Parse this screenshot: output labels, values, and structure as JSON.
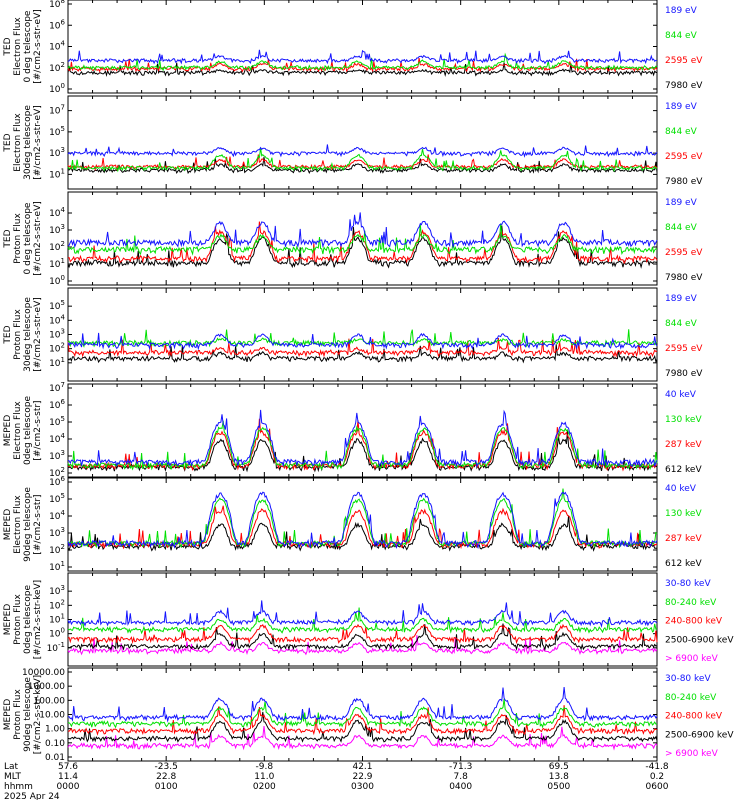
{
  "colors": {
    "blue": "#1414ff",
    "red": "#ff0000",
    "green": "#00e000",
    "black": "#000000",
    "magenta": "#ff00ff"
  },
  "chart_data": [
    {
      "type": "line",
      "ylabel": [
        "TED",
        "Electron Flux",
        "0 deg telescope",
        "[#/cm2-s-str-eV]"
      ],
      "ylog": true,
      "ylim": [
        1,
        100000000
      ],
      "yticks": [
        {
          "v": 1,
          "t": "10^0"
        },
        {
          "v": 100,
          "t": "10^2"
        },
        {
          "v": 10000,
          "t": "10^4"
        },
        {
          "v": 1000000,
          "t": "10^6"
        },
        {
          "v": 100000000,
          "t": "10^8"
        }
      ],
      "series": [
        {
          "name": "7980 eV",
          "color": "black",
          "floor": 10,
          "amp": 25,
          "base": 30
        },
        {
          "name": "2595 eV",
          "color": "red",
          "floor": 30,
          "amp": 150,
          "base": 60
        },
        {
          "name": "844 eV",
          "color": "green",
          "floor": 40,
          "amp": 300,
          "base": 80
        },
        {
          "name": "189 eV",
          "color": "blue",
          "floor": 200,
          "amp": 700,
          "base": 350
        }
      ]
    },
    {
      "type": "line",
      "ylabel": [
        "TED",
        "Electron Flux",
        "30deg telescope",
        "[#/cm2-s-str-eV]"
      ],
      "ylog": true,
      "ylim": [
        1,
        100000000
      ],
      "yticks": [
        {
          "v": 10,
          "t": "10^1"
        },
        {
          "v": 1000,
          "t": "10^3"
        },
        {
          "v": 100000,
          "t": "10^5"
        },
        {
          "v": 10000000,
          "t": "10^7"
        }
      ],
      "series": [
        {
          "name": "7980 eV",
          "color": "black",
          "floor": 8,
          "amp": 60,
          "base": 20
        },
        {
          "name": "2595 eV",
          "color": "red",
          "floor": 20,
          "amp": 180,
          "base": 40
        },
        {
          "name": "844 eV",
          "color": "green",
          "floor": 15,
          "amp": 600,
          "base": 30
        },
        {
          "name": "189 eV",
          "color": "blue",
          "floor": 300,
          "amp": 2000,
          "base": 800
        }
      ]
    },
    {
      "type": "line",
      "ylabel": [
        "TED",
        "Proton Flux",
        "0 deg telescope",
        "[#/cm2-s-str-eV]"
      ],
      "ylog": true,
      "ylim": [
        1,
        100000
      ],
      "yticks": [
        {
          "v": 1,
          "t": "10^0"
        },
        {
          "v": 10,
          "t": "10^1"
        },
        {
          "v": 100,
          "t": "10^2"
        },
        {
          "v": 1000,
          "t": "10^3"
        },
        {
          "v": 10000,
          "t": "10^4"
        }
      ],
      "series": [
        {
          "name": "7980 eV",
          "color": "black",
          "floor": 5,
          "amp": 300,
          "base": 8
        },
        {
          "name": "2595 eV",
          "color": "red",
          "floor": 8,
          "amp": 700,
          "base": 15
        },
        {
          "name": "844 eV",
          "color": "green",
          "floor": 20,
          "amp": 400,
          "base": 60
        },
        {
          "name": "189 eV",
          "color": "blue",
          "floor": 60,
          "amp": 2500,
          "base": 150
        }
      ]
    },
    {
      "type": "line",
      "ylabel": [
        "TED",
        "Proton Flux",
        "30deg telescope",
        "[#/cm2-s-str-eV]"
      ],
      "ylog": true,
      "ylim": [
        1,
        1000000
      ],
      "yticks": [
        {
          "v": 10,
          "t": "10^1"
        },
        {
          "v": 100,
          "t": "10^2"
        },
        {
          "v": 1000,
          "t": "10^3"
        },
        {
          "v": 10000,
          "t": "10^4"
        },
        {
          "v": 100000,
          "t": "10^5"
        }
      ],
      "series": [
        {
          "name": "7980 eV",
          "color": "black",
          "floor": 8,
          "amp": 30,
          "base": 15
        },
        {
          "name": "2595 eV",
          "color": "red",
          "floor": 20,
          "amp": 60,
          "base": 40
        },
        {
          "name": "844 eV",
          "color": "green",
          "floor": 90,
          "amp": 200,
          "base": 200
        },
        {
          "name": "189 eV",
          "color": "blue",
          "floor": 60,
          "amp": 800,
          "base": 150
        }
      ]
    },
    {
      "type": "line",
      "ylabel": [
        "MEPED",
        "Electron Flux",
        "0deg telescope",
        "[#/cm2-s-str]"
      ],
      "ylog": true,
      "ylim": [
        100,
        10000000
      ],
      "yticks": [
        {
          "v": 100,
          "t": "10^2"
        },
        {
          "v": 1000,
          "t": "10^3"
        },
        {
          "v": 10000,
          "t": "10^4"
        },
        {
          "v": 100000,
          "t": "10^5"
        },
        {
          "v": 1000000,
          "t": "10^6"
        },
        {
          "v": 10000000,
          "t": "10^7"
        }
      ],
      "series": [
        {
          "name": "612 keV",
          "color": "black",
          "floor": 110,
          "amp": 8000,
          "base": 130
        },
        {
          "name": "287 keV",
          "color": "red",
          "floor": 120,
          "amp": 25000,
          "base": 160
        },
        {
          "name": "130 keV",
          "color": "green",
          "floor": 130,
          "amp": 40000,
          "base": 200
        },
        {
          "name": "40 keV",
          "color": "blue",
          "floor": 150,
          "amp": 80000,
          "base": 350
        }
      ]
    },
    {
      "type": "line",
      "ylabel": [
        "MEPED",
        "Electron Flux",
        "90deg telescope",
        "[#/cm2-s-str]"
      ],
      "ylog": true,
      "ylim": [
        10,
        1000000
      ],
      "yticks": [
        {
          "v": 10,
          "t": "10^1"
        },
        {
          "v": 100,
          "t": "10^2"
        },
        {
          "v": 1000,
          "t": "10^3"
        },
        {
          "v": 10000,
          "t": "10^4"
        },
        {
          "v": 100000,
          "t": "10^5"
        },
        {
          "v": 1000000,
          "t": "10^6"
        }
      ],
      "series": [
        {
          "name": "612 keV",
          "color": "black",
          "floor": 80,
          "amp": 3000,
          "base": 100
        },
        {
          "name": "287 keV",
          "color": "red",
          "floor": 110,
          "amp": 20000,
          "base": 130
        },
        {
          "name": "130 keV",
          "color": "green",
          "floor": 120,
          "amp": 90000,
          "base": 150
        },
        {
          "name": "40 keV",
          "color": "blue",
          "floor": 100,
          "amp": 200000,
          "base": 180
        }
      ]
    },
    {
      "type": "line",
      "ylabel": [
        "MEPED",
        "Proton Flux",
        "0deg telescope",
        "[#/cm2-s-str-keV]"
      ],
      "ylog": true,
      "ylim": [
        0.01,
        10000
      ],
      "yticks": [
        {
          "v": 0.1,
          "t": "10^-1"
        },
        {
          "v": 1,
          "t": "10^0"
        },
        {
          "v": 10,
          "t": "10^1"
        },
        {
          "v": 100,
          "t": "10^2"
        },
        {
          "v": 1000,
          "t": "10^3"
        }
      ],
      "series": [
        {
          "name": "> 6900 keV",
          "color": "magenta",
          "floor": 0.03,
          "amp": 0.15,
          "base": 0.04
        },
        {
          "name": "2500-6900 keV",
          "color": "black",
          "floor": 0.06,
          "amp": 0.8,
          "base": 0.08
        },
        {
          "name": "240-800 keV",
          "color": "red",
          "floor": 0.15,
          "amp": 3,
          "base": 0.3
        },
        {
          "name": "80-240 keV",
          "color": "green",
          "floor": 1,
          "amp": 8,
          "base": 1.2
        },
        {
          "name": "30-80 keV",
          "color": "blue",
          "floor": 3,
          "amp": 30,
          "base": 4
        }
      ]
    },
    {
      "type": "line",
      "ylabel": [
        "MEPED",
        "Proton Flux",
        "90deg telescope",
        "[#/cm2-s-str-keV]"
      ],
      "ylog": true,
      "ylim": [
        0.01,
        10000
      ],
      "yticks": [
        {
          "v": 0.01,
          "t": "0.01"
        },
        {
          "v": 0.1,
          "t": "0.10"
        },
        {
          "v": 1,
          "t": "1.00"
        },
        {
          "v": 10,
          "t": "10.00"
        },
        {
          "v": 100,
          "t": "100.00"
        },
        {
          "v": 1000,
          "t": "1000.00"
        },
        {
          "v": 10000,
          "t": "10000.00"
        }
      ],
      "series": [
        {
          "name": "> 6900 keV",
          "color": "magenta",
          "floor": 0.03,
          "amp": 0.25,
          "base": 0.04
        },
        {
          "name": "2500-6900 keV",
          "color": "black",
          "floor": 0.1,
          "amp": 3,
          "base": 0.12
        },
        {
          "name": "240-800 keV",
          "color": "red",
          "floor": 0.3,
          "amp": 8,
          "base": 0.5
        },
        {
          "name": "80-240 keV",
          "color": "green",
          "floor": 1,
          "amp": 25,
          "base": 1.5
        },
        {
          "name": "30-80 keV",
          "color": "blue",
          "floor": 3,
          "amp": 120,
          "base": 4
        }
      ]
    }
  ],
  "passes": [
    1.55,
    1.98,
    2.95,
    3.62,
    4.43,
    5.05
  ],
  "xaxis": {
    "row_labels": [
      "Lat",
      "MLT",
      "hhmm"
    ],
    "ticks": [
      {
        "t": 0,
        "lat": "57.6",
        "mlt": "11.4",
        "hhmm": "0000"
      },
      {
        "t": 1,
        "lat": "-23.5",
        "mlt": "22.8",
        "hhmm": "0100"
      },
      {
        "t": 2,
        "lat": "-9.8",
        "mlt": "11.0",
        "hhmm": "0200"
      },
      {
        "t": 3,
        "lat": "42.1",
        "mlt": "22.9",
        "hhmm": "0300"
      },
      {
        "t": 4,
        "lat": "-71.3",
        "mlt": "7.8",
        "hhmm": "0400"
      },
      {
        "t": 5,
        "lat": "69.5",
        "mlt": "13.8",
        "hhmm": "0500"
      },
      {
        "t": 6,
        "lat": "-41.8",
        "mlt": "0.2",
        "hhmm": "0600"
      }
    ],
    "date": "2025 Apr 24"
  }
}
